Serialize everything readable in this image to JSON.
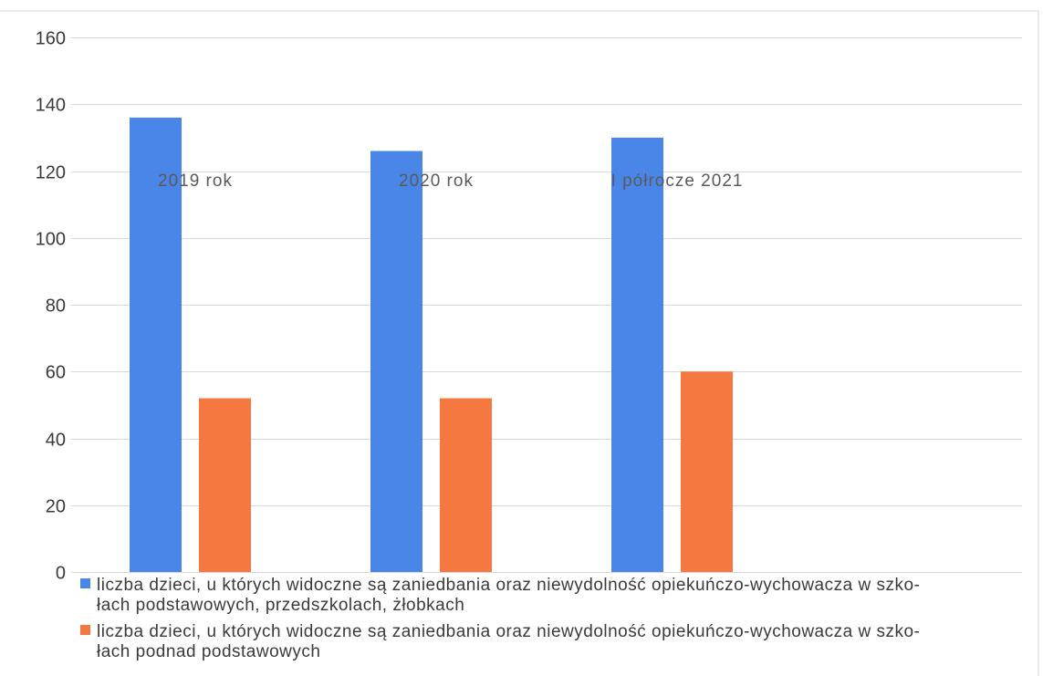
{
  "chart_data": {
    "type": "bar",
    "categories": [
      "2019 rok",
      "2020 rok",
      "I półrocze 2021"
    ],
    "series": [
      {
        "name_lines": [
          "liczba dzieci, u których widoczne są zaniedbania oraz niewydolność opiekuńczo-wychowacza w szko-",
          "łach podstawowych, przedszkolach, żłobkach"
        ],
        "values": [
          136,
          126,
          130
        ],
        "color": "#4a86e8"
      },
      {
        "name_lines": [
          "liczba dzieci, u których widoczne są zaniedbania oraz niewydolność opiekuńczo-wychowacza w szko-",
          "łach podnad podstawowych"
        ],
        "values": [
          52,
          52,
          60
        ],
        "color": "#f4783f"
      }
    ],
    "ylim": [
      0,
      160
    ],
    "yticks": [
      0,
      20,
      40,
      60,
      80,
      100,
      120,
      140,
      160
    ],
    "grid": true,
    "legend": "bottom"
  }
}
